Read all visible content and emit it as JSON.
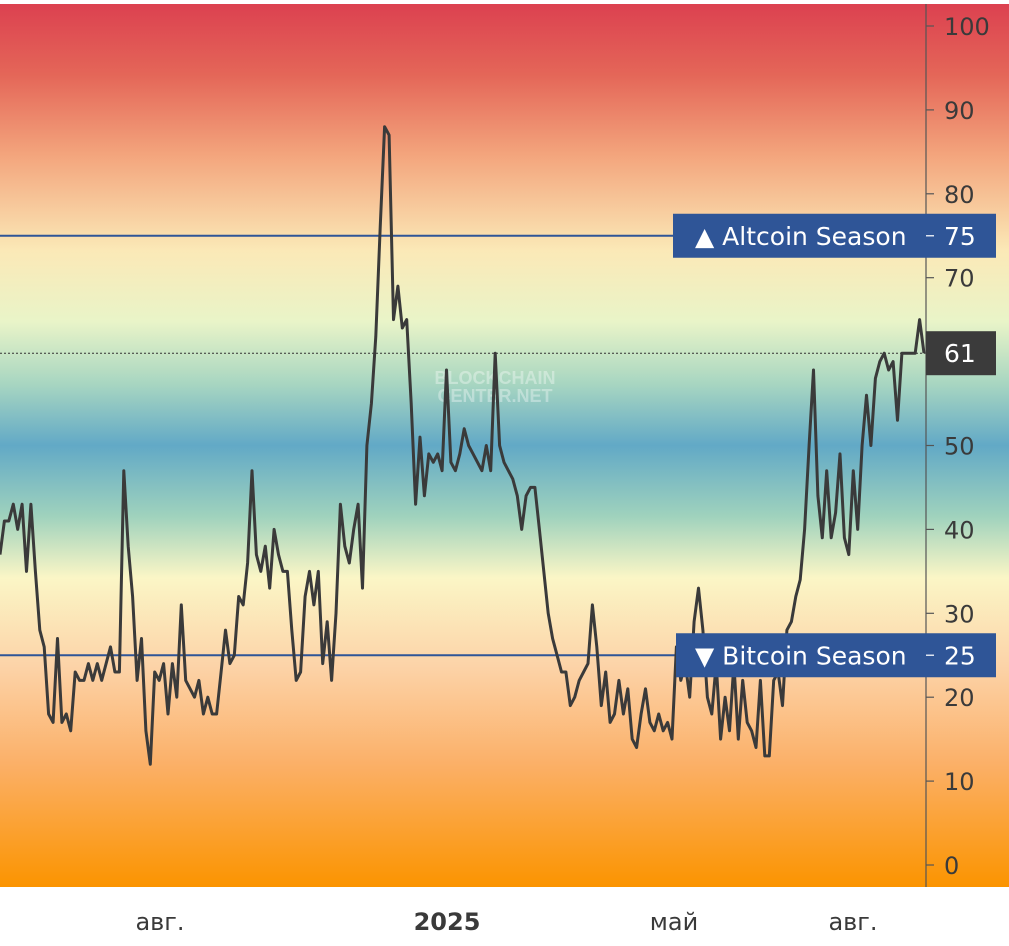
{
  "chart_data": {
    "type": "line",
    "watermark": [
      "BLOCKCHAIN",
      "CENTER.NET"
    ],
    "y_ticks": [
      0,
      10,
      20,
      30,
      40,
      50,
      60,
      70,
      80,
      90,
      100
    ],
    "ylim": [
      0,
      100
    ],
    "x_ticks": [
      {
        "label": "авг.",
        "bold": false
      },
      {
        "label": "2025",
        "bold": true
      },
      {
        "label": "май",
        "bold": false
      },
      {
        "label": "авг.",
        "bold": false
      }
    ],
    "thresholds": [
      {
        "label": "▲ Altcoin Season",
        "value": 75,
        "color": "#2f5597"
      },
      {
        "label": "▼ Bitcoin Season",
        "value": 25,
        "color": "#2f5597"
      }
    ],
    "current": {
      "value": 61,
      "color": "#3b3b3b"
    },
    "y_label_values": [
      75,
      25
    ],
    "series": [
      {
        "values": [
          37,
          41,
          41,
          43,
          40,
          43,
          35,
          43,
          35,
          28,
          26,
          18,
          17,
          27,
          17,
          18,
          16,
          23,
          22,
          22,
          24,
          22,
          24,
          22,
          24,
          26,
          23,
          23,
          47,
          38,
          32,
          22,
          27,
          16,
          12,
          23,
          22,
          24,
          18,
          24,
          20,
          31,
          22,
          21,
          20,
          22,
          18,
          20,
          18,
          18,
          23,
          28,
          24,
          25,
          32,
          31,
          36,
          47,
          37,
          35,
          38,
          33,
          40,
          37,
          35,
          35,
          28,
          22,
          23,
          32,
          35,
          31,
          35,
          24,
          29,
          22,
          30,
          43,
          38,
          36,
          40,
          43,
          33,
          50,
          55,
          63,
          76,
          88,
          87,
          65,
          69,
          64,
          65,
          55,
          43,
          51,
          44,
          49,
          48,
          49,
          47,
          59,
          48,
          47,
          49,
          52,
          50,
          49,
          48,
          47,
          50,
          47,
          61,
          50,
          48,
          47,
          46,
          44,
          40,
          44,
          45,
          45,
          40,
          35,
          30,
          27,
          25,
          23,
          23,
          19,
          20,
          22,
          23,
          24,
          31,
          26,
          19,
          23,
          17,
          18,
          22,
          18,
          21,
          15,
          14,
          18,
          21,
          17,
          16,
          18,
          16,
          17,
          15,
          26,
          22,
          24,
          20,
          29,
          33,
          28,
          20,
          18,
          24,
          15,
          20,
          16,
          24,
          15,
          22,
          17,
          16,
          14,
          22,
          13,
          13,
          22,
          23,
          19,
          28,
          29,
          32,
          34,
          40,
          50,
          59,
          44,
          39,
          47,
          39,
          42,
          49,
          39,
          37,
          47,
          40,
          50,
          56,
          50,
          58,
          60,
          61,
          59,
          60,
          53,
          61,
          61,
          61,
          61,
          65,
          61
        ]
      }
    ]
  }
}
